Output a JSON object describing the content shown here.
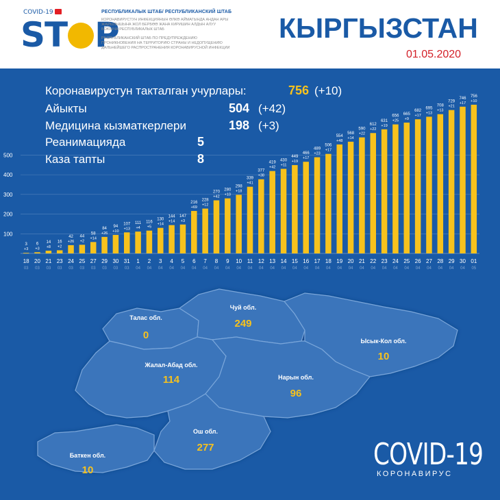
{
  "header": {
    "logo_small": "COVID-19",
    "logo_big_a": "ST",
    "logo_big_b": "P",
    "hq_title": "РЕСПУБЛИКАЛЫК ШТАБ/ РЕСПУБЛИКАНСКИЙ ШТАБ",
    "hq_text_ky": "КОРОНАВИРУСТУН ИНФЕКЦИЯНЫН ӨЛКӨ АЙМАГЫНДА АНДАН АРЫ ЖАЙЫЛЫШЫНА ЖОЛ БЕРБӨӨ ЖАНА КИРИШИН АЛДЫН АЛУУ БОЮНЧА РЕСПУБЛИКАЛЫК ШТАБ",
    "hq_text_ru": "РЕСПУБЛИКАНСКИЙ ШТАБ ПО ПРЕДУПРЕЖДЕНИЮ ПРОНИКНОВЕНИЯ НА ТЕРРИТОРИЮ СТРАНЫ И НЕДОПУЩЕНИЮ ДАЛЬНЕЙШЕГО РАСПРОСТРАНЕНИЯ КОРОНАВИРУСНОЙ ИНФЕКЦИИ",
    "country": "КЫРГЫЗСТАН",
    "date": "01.05.2020"
  },
  "stats": [
    {
      "label": "Коронавирустун тактал­ган учурлары:",
      "value": "756",
      "delta": "(+10)",
      "value_color": "#f7c21d"
    },
    {
      "label": "Айыкты",
      "value": "504",
      "delta": "(+42)",
      "value_color": "#ffffff"
    },
    {
      "label": "Медицина кызматкерлери",
      "value": "198",
      "delta": "(+3)",
      "value_color": "#ffffff"
    },
    {
      "label": "Реанимацияда",
      "value": "5",
      "delta": "",
      "value_color": "#ffffff"
    },
    {
      "label": "Каза тапты",
      "value": "8",
      "delta": "",
      "value_color": "#ffffff"
    }
  ],
  "chart_data": {
    "type": "bar",
    "yticks": [
      "100",
      "200",
      "300",
      "400",
      "500"
    ],
    "ylim": [
      0,
      780
    ],
    "grid": true,
    "bar_color": "#f7c21d",
    "categories": [
      {
        "day": "18",
        "month": "03"
      },
      {
        "day": "20",
        "month": "03"
      },
      {
        "day": "21",
        "month": "03"
      },
      {
        "day": "23",
        "month": "03"
      },
      {
        "day": "24",
        "month": "03"
      },
      {
        "day": "25",
        "month": "03"
      },
      {
        "day": "27",
        "month": "03"
      },
      {
        "day": "29",
        "month": "03"
      },
      {
        "day": "30",
        "month": "03"
      },
      {
        "day": "31",
        "month": "03"
      },
      {
        "day": "1",
        "month": "04"
      },
      {
        "day": "2",
        "month": "04"
      },
      {
        "day": "3",
        "month": "04"
      },
      {
        "day": "4",
        "month": "04"
      },
      {
        "day": "5",
        "month": "04"
      },
      {
        "day": "6",
        "month": "04"
      },
      {
        "day": "7",
        "month": "04"
      },
      {
        "day": "8",
        "month": "04"
      },
      {
        "day": "9",
        "month": "04"
      },
      {
        "day": "10",
        "month": "04"
      },
      {
        "day": "11",
        "month": "04"
      },
      {
        "day": "12",
        "month": "04"
      },
      {
        "day": "13",
        "month": "04"
      },
      {
        "day": "14",
        "month": "04"
      },
      {
        "day": "15",
        "month": "04"
      },
      {
        "day": "16",
        "month": "04"
      },
      {
        "day": "17",
        "month": "04"
      },
      {
        "day": "18",
        "month": "04"
      },
      {
        "day": "19",
        "month": "04"
      },
      {
        "day": "20",
        "month": "04"
      },
      {
        "day": "21",
        "month": "04"
      },
      {
        "day": "22",
        "month": "04"
      },
      {
        "day": "23",
        "month": "04"
      },
      {
        "day": "24",
        "month": "04"
      },
      {
        "day": "25",
        "month": "04"
      },
      {
        "day": "26",
        "month": "04"
      },
      {
        "day": "27",
        "month": "04"
      },
      {
        "day": "28",
        "month": "04"
      },
      {
        "day": "29",
        "month": "04"
      },
      {
        "day": "30",
        "month": "04"
      },
      {
        "day": "01",
        "month": "05"
      }
    ],
    "values": [
      3,
      6,
      14,
      16,
      42,
      44,
      58,
      84,
      94,
      107,
      111,
      116,
      130,
      144,
      147,
      216,
      228,
      270,
      280,
      298,
      339,
      377,
      419,
      430,
      449,
      466,
      489,
      506,
      554,
      568,
      590,
      612,
      631,
      656,
      665,
      682,
      695,
      708,
      729,
      746,
      756
    ],
    "increments": [
      "+3",
      "+3",
      "+8",
      "+2",
      "+26",
      "+2",
      "+14",
      "+26",
      "+10",
      "+13",
      "+4",
      "+5",
      "+14",
      "+14",
      "+3",
      "+69",
      "+12",
      "+42",
      "+10",
      "+18",
      "+41",
      "+38",
      "+42",
      "+11",
      "+19",
      "+17",
      "+23",
      "+17",
      "+48",
      "+14",
      "+22",
      "+22",
      "+19",
      "+25",
      "+9",
      "+17",
      "+13",
      "+13",
      "+21",
      "+17",
      "+10"
    ]
  },
  "map": {
    "regions": [
      {
        "name": "Талас обл.",
        "value": "0"
      },
      {
        "name": "Чуй обл.",
        "value": "249"
      },
      {
        "name": "Ысык-Кол обл.",
        "value": "10"
      },
      {
        "name": "Жалал-Абад обл.",
        "value": "114"
      },
      {
        "name": "Нарын обл.",
        "value": "96"
      },
      {
        "name": "Ош обл.",
        "value": "277"
      },
      {
        "name": "Баткен обл.",
        "value": "10"
      }
    ]
  },
  "footer": {
    "title": "COVID-19",
    "subtitle": "КОРОНАВИРУС"
  }
}
